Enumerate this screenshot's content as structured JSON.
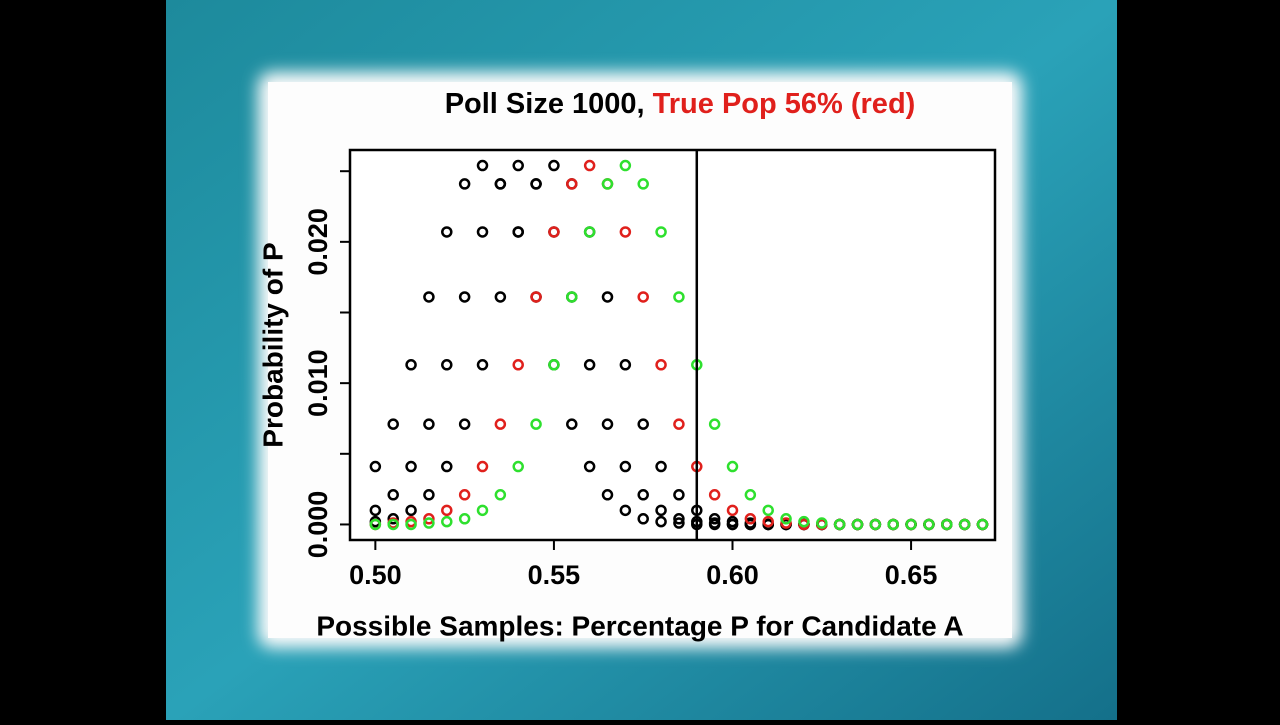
{
  "chart_data": {
    "type": "scatter",
    "title": "Poll Size 1000,",
    "subtitle": "True Pop 56% (red)",
    "subtitle_color": "#e0201c",
    "x_label": "Possible Samples: Percentage P for Candidate A",
    "y_label": "Probability of P",
    "x": [
      0.5,
      0.505,
      0.51,
      0.515,
      0.52,
      0.525,
      0.53,
      0.535,
      0.54,
      0.545,
      0.55,
      0.555,
      0.56,
      0.565,
      0.57,
      0.575,
      0.58,
      0.585,
      0.59,
      0.595,
      0.6,
      0.605,
      0.61,
      0.615,
      0.62,
      0.625,
      0.63,
      0.635,
      0.64,
      0.645,
      0.65,
      0.655,
      0.66,
      0.665,
      0.67
    ],
    "series": [
      {
        "color": "#000000",
        "values": [
          0.0041,
          0.0071,
          0.0113,
          0.0161,
          0.0207,
          0.0241,
          0.0254,
          0.0241,
          0.0207,
          0.0161,
          0.0113,
          0.0071,
          0.0041,
          0.0021,
          0.001,
          0.0004,
          0.0002,
          0.0001,
          0,
          0,
          0,
          0,
          0,
          0,
          0,
          0,
          0,
          0,
          0,
          0,
          0,
          0,
          0,
          0,
          0
        ]
      },
      {
        "color": "#000000",
        "values": [
          0.001,
          0.0021,
          0.0041,
          0.0071,
          0.0113,
          0.0161,
          0.0207,
          0.0241,
          0.0254,
          0.0241,
          0.0207,
          0.0161,
          0.0113,
          0.0071,
          0.0041,
          0.0021,
          0.001,
          0.0004,
          0.0002,
          0.0001,
          0,
          0,
          0,
          0,
          0,
          0,
          0,
          0,
          0,
          0,
          0,
          0,
          0,
          0,
          0
        ]
      },
      {
        "color": "#000000",
        "values": [
          0.0002,
          0.0004,
          0.001,
          0.0021,
          0.0041,
          0.0071,
          0.0113,
          0.0161,
          0.0207,
          0.0241,
          0.0254,
          0.0241,
          0.0207,
          0.0161,
          0.0113,
          0.0071,
          0.0041,
          0.0021,
          0.001,
          0.0004,
          0.0002,
          0.0001,
          0,
          0,
          0,
          0,
          0,
          0,
          0,
          0,
          0,
          0,
          0,
          0,
          0
        ]
      },
      {
        "color": "#e0201c",
        "values": [
          0,
          0.0001,
          0.0002,
          0.0004,
          0.001,
          0.0021,
          0.0041,
          0.0071,
          0.0113,
          0.0161,
          0.0207,
          0.0241,
          0.0254,
          0.0241,
          0.0207,
          0.0161,
          0.0113,
          0.0071,
          0.0041,
          0.0021,
          0.001,
          0.0004,
          0.0002,
          0.0001,
          0,
          0,
          0,
          0,
          0,
          0,
          0,
          0,
          0,
          0,
          0
        ]
      },
      {
        "color": "#2ee02e",
        "values": [
          0,
          0,
          0,
          0.0001,
          0.0002,
          0.0004,
          0.001,
          0.0021,
          0.0041,
          0.0071,
          0.0113,
          0.0161,
          0.0207,
          0.0241,
          0.0254,
          0.0241,
          0.0207,
          0.0161,
          0.0113,
          0.0071,
          0.0041,
          0.0021,
          0.001,
          0.0004,
          0.0002,
          0.0001,
          0,
          0,
          0,
          0,
          0,
          0,
          0,
          0,
          0
        ]
      }
    ],
    "vline": 0.59,
    "xlim": [
      0.4929,
      0.6735
    ],
    "ylim": [
      -0.0011,
      0.0265
    ],
    "xticks": [
      {
        "value": 0.5,
        "label": "0.50"
      },
      {
        "value": 0.55,
        "label": "0.55"
      },
      {
        "value": 0.6,
        "label": "0.60"
      },
      {
        "value": 0.65,
        "label": "0.65"
      }
    ],
    "yticks": [
      {
        "value": 0,
        "label": "0.000"
      },
      {
        "value": 0.01,
        "label": "0.010"
      },
      {
        "value": 0.02,
        "label": "0.020"
      }
    ],
    "yminorticks": [
      0.005,
      0.015,
      0.025
    ],
    "grid": false
  }
}
